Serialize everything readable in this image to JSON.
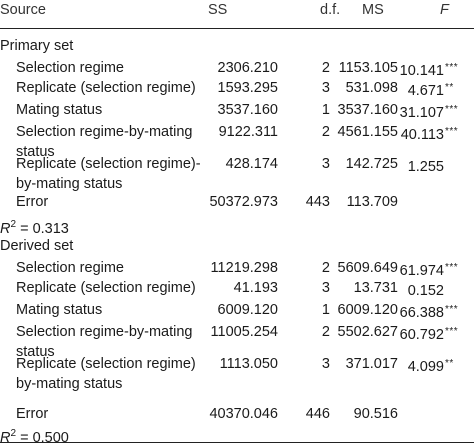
{
  "header": {
    "source": "Source",
    "ss": "SS",
    "df": "d.f.",
    "ms": "MS",
    "f": "F"
  },
  "sections": [
    {
      "title": "Primary set",
      "rows": [
        {
          "source": [
            "Selection regime"
          ],
          "ss": "2306.210",
          "df": "2",
          "ms": "1153.105",
          "f": "10.141",
          "stars": "***"
        },
        {
          "source": [
            "Replicate (selection regime)"
          ],
          "ss": "1593.295",
          "df": "3",
          "ms": "531.098",
          "f": "4.671",
          "stars": "**"
        },
        {
          "source": [
            "Mating status"
          ],
          "ss": "3537.160",
          "df": "1",
          "ms": "3537.160",
          "f": "31.107",
          "stars": "***"
        },
        {
          "source": [
            "Selection regime-by-mating",
            "status"
          ],
          "ss": "9122.311",
          "df": "2",
          "ms": "4561.155",
          "f": "40.113",
          "stars": "***"
        },
        {
          "source": [
            "Replicate (selection regime)-",
            "by-mating status"
          ],
          "ss": "428.174",
          "df": "3",
          "ms": "142.725",
          "f": "1.255",
          "stars": ""
        },
        {
          "source": [
            "Error"
          ],
          "ss": "50372.973",
          "df": "443",
          "ms": "113.709",
          "f": "",
          "stars": ""
        }
      ],
      "r2": {
        "symbol": "R",
        "exp": "2",
        "text": " = 0.313"
      }
    },
    {
      "title": "Derived set",
      "rows": [
        {
          "source": [
            "Selection regime"
          ],
          "ss": "11219.298",
          "df": "2",
          "ms": "5609.649",
          "f": "61.974",
          "stars": "***"
        },
        {
          "source": [
            "Replicate (selection regime)"
          ],
          "ss": "41.193",
          "df": "3",
          "ms": "13.731",
          "f": "0.152",
          "stars": ""
        },
        {
          "source": [
            "Mating status"
          ],
          "ss": "6009.120",
          "df": "1",
          "ms": "6009.120",
          "f": "66.388",
          "stars": "***"
        },
        {
          "source": [
            "Selection regime-by-mating",
            "status"
          ],
          "ss": "11005.254",
          "df": "2",
          "ms": "5502.627",
          "f": "60.792",
          "stars": "***"
        },
        {
          "source": [
            "Replicate (selection regime)",
            "by-mating status"
          ],
          "ss": "1113.050",
          "df": "3",
          "ms": "371.017",
          "f": "4.099",
          "stars": "**"
        },
        {
          "source": [
            "Error"
          ],
          "ss": "40370.046",
          "df": "446",
          "ms": "90.516",
          "f": "",
          "stars": ""
        }
      ],
      "r2": {
        "symbol": "R",
        "exp": "2",
        "text": " = 0.500"
      }
    }
  ]
}
